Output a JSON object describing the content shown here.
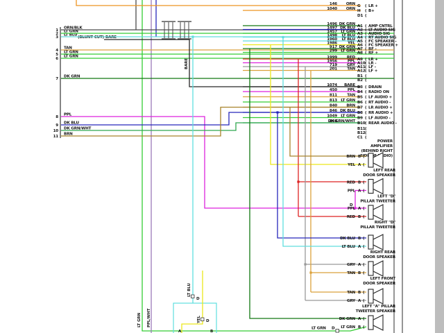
{
  "page": {
    "background": "#ffffff",
    "right_margin_color": "#bdbdbd",
    "rule_color": "#2b2b2b"
  },
  "colors": {
    "ORN/BLK": "#4a4a4a",
    "LT GRN": "#33cc33",
    "LT BLU": "#5fdede",
    "BARE": "#262626",
    "TAN": "#dba13a",
    "DK GRN": "#117711",
    "PPL": "#dd22dd",
    "DK BLU": "#2626bb",
    "DK GRN/WHT": "#2fa84f",
    "BRN": "#a8832a",
    "YEL": "#ece81a",
    "RED": "#dd2222",
    "GRY": "#999999",
    "ORN": "#ee9422",
    "PPL/WHT": "#9a7ab8"
  },
  "top_connector": {
    "rows": [
      {
        "wire": "146",
        "color": "ORN",
        "pin": "G",
        "label": "LR +"
      },
      {
        "wire": "1040",
        "color": "ORN",
        "pin": "H",
        "label": "B+"
      }
    ],
    "extra_pin": "D1"
  },
  "left_connector": {
    "pins": [
      {
        "num": "1",
        "color": "ORN/BLK"
      },
      {
        "num": "2",
        "color": "LT GRN"
      },
      {
        "num": "3",
        "color": "LT BLU"
      },
      {
        "num": "",
        "color": "BARE",
        "note": "(BLUNT CUT)"
      },
      {
        "num": "4",
        "color": "TAN"
      },
      {
        "num": "5",
        "color": "LT GRN"
      },
      {
        "num": "6",
        "color": "LT GRN"
      },
      {
        "num": "7",
        "color": "DK GRN"
      },
      {
        "num": "8",
        "color": "PPL"
      },
      {
        "num": "9",
        "color": "DK BLU"
      },
      {
        "num": "10",
        "color": "DK GRN/WHT"
      },
      {
        "num": "11",
        "color": "BRN"
      }
    ]
  },
  "amplifier": {
    "title_lines": [
      "POWER",
      "AMPLIFIER",
      "(BEHIND RIGHT",
      "SIDE OF RADIO)"
    ],
    "bank_a": [
      {
        "wire": "1496",
        "color": "DK GRN",
        "pin": "A1",
        "label": "AMP CNTRL"
      },
      {
        "wire": "1497",
        "color": "DK BLU",
        "pin": "A2",
        "label": "LT AUDIO SIG"
      },
      {
        "wire": "1457",
        "color": "LT GRN",
        "pin": "A3",
        "label": "AUDIO SIG"
      },
      {
        "wire": "1498",
        "color": "LT BLU",
        "pin": "A4",
        "label": "RT AUDIO SIG"
      },
      {
        "wire": "1960",
        "color": "LT BLU",
        "pin": "A5",
        "label": "FC SPEAKER -"
      },
      {
        "wire": "1986",
        "color": "YEL",
        "pin": "A6",
        "label": "FC SPEAKER +"
      },
      {
        "wire": "917",
        "color": "DK GRN",
        "pin": "A7",
        "label": "RF -"
      },
      {
        "wire": "299",
        "color": "LT GRN",
        "pin": "A8",
        "label": "RF +"
      },
      {
        "wire": "1999",
        "color": "RED",
        "pin": "A9",
        "label": "LR +"
      },
      {
        "wire": "1956",
        "color": "PPL",
        "pin": "A10",
        "label": "LR -"
      },
      {
        "wire": "719",
        "color": "GRY",
        "pin": "A11",
        "label": "LF -"
      },
      {
        "wire": "201",
        "color": "TAN",
        "pin": "A12",
        "label": "LF +"
      }
    ],
    "empty_pins_top": [
      "B1",
      "B2"
    ],
    "bank_b": [
      {
        "wire": "1074",
        "color": "BARE",
        "pin": "B3",
        "label": "DRAIN"
      },
      {
        "wire": "450",
        "color": "PPL",
        "pin": "B4",
        "label": "RADIO ON"
      },
      {
        "wire": "811",
        "color": "TAN",
        "pin": "B5",
        "label": "LF AUDIO +"
      },
      {
        "wire": "813",
        "color": "LT GRN",
        "pin": "B6",
        "label": "RT AUDIO -"
      },
      {
        "wire": "840",
        "color": "BRN",
        "pin": "B7",
        "label": "LR AUDIO +"
      },
      {
        "wire": "846",
        "color": "DK BLU",
        "pin": "B8",
        "label": "RR AUDIO +"
      },
      {
        "wire": "1049",
        "color": "LT GRN",
        "pin": "B9",
        "label": "LF AUDIO -"
      },
      {
        "wire": "848",
        "color": "DK GRN/WHT",
        "pin": "B10",
        "label": "REAR AUDIO -"
      }
    ],
    "empty_pins_bottom": [
      "B11",
      "B12",
      "C1"
    ]
  },
  "speakers": [
    {
      "name_lines": [
        "LEFT REAR",
        "DOOR SPEAKER"
      ],
      "pins": [
        {
          "color": "BRN",
          "pin": "B"
        },
        {
          "color": "YEL",
          "pin": "A"
        }
      ]
    },
    {
      "name_lines": [
        "LEFT \"D\"",
        "PILLAR TWEETER"
      ],
      "pins": [
        {
          "color": "RED",
          "pin": "B"
        },
        {
          "color": "PPL",
          "pin": "A"
        }
      ]
    },
    {
      "name_lines": [
        "RIGHT \"D\"",
        "PILLAR TWEETER"
      ],
      "pins": [
        {
          "color": "PPL",
          "pin": "A"
        },
        {
          "color": "RED",
          "pin": "B"
        }
      ]
    },
    {
      "name_lines": [
        "RIGHT REAR",
        "DOOR SPEAKER"
      ],
      "pins": [
        {
          "color": "DK BLU",
          "pin": "B"
        },
        {
          "color": "LT BLU",
          "pin": "A"
        }
      ]
    },
    {
      "name_lines": [
        "LEFT FRONT",
        "DOOR SPEAKER"
      ],
      "pins": [
        {
          "color": "GRY",
          "pin": "A"
        },
        {
          "color": "TAN",
          "pin": "B"
        }
      ]
    },
    {
      "name_lines": [
        "LEFT \"A\" PILLAR",
        "TWEETER SPEAKER"
      ],
      "pins": [
        {
          "color": "TAN",
          "pin": "B"
        },
        {
          "color": "GRY",
          "pin": "A"
        }
      ]
    },
    {
      "name_lines": [],
      "pins": [
        {
          "color": "DK GRN",
          "pin": "A"
        },
        {
          "color": "LT GRN",
          "pin": "B"
        }
      ]
    }
  ],
  "inline_labels": {
    "blunt_cut": "(BLUNT CUT)",
    "bare": "BARE",
    "lt_blu_v": "LT BLU",
    "yel_v": "YEL",
    "lt_grn_h": "LT GRN",
    "lt_grn_v": "LT GRN",
    "ppl_wht_v": "PPL/WHT",
    "d_mark": "D"
  },
  "bottom_module": {
    "pins": [
      "A",
      "B"
    ]
  }
}
